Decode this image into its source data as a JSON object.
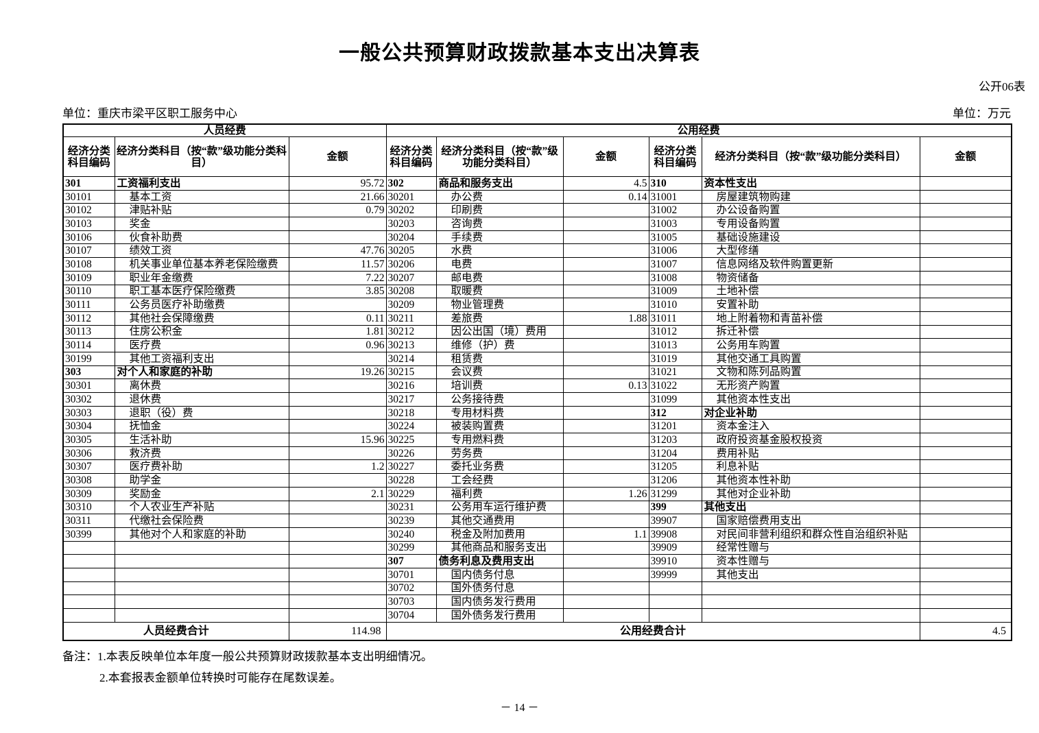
{
  "header": {
    "title": "一般公共预算财政拨款基本支出决算表",
    "table_no": "公开06表",
    "unit_org": "单位：重庆市梁平区职工服务中心",
    "unit_money": "单位：万元"
  },
  "table": {
    "group_left": "人员经费",
    "group_right": "公用经费",
    "headers": [
      "经济分类科目编码",
      "经济分类科目（按“款”级功能分类科目）",
      "金额",
      "经济分类科目编码",
      "经济分类科目（按“款”级功能分类科目）",
      "金额",
      "经济分类科目编码",
      "经济分类科目（按“款”级功能分类科目）",
      "金额"
    ],
    "sections": {
      "left": [
        [
          "301",
          "工资福利支出",
          "95.72",
          1
        ],
        [
          "30101",
          "基本工资",
          "21.66",
          0
        ],
        [
          "30102",
          "津贴补贴",
          "0.79",
          0
        ],
        [
          "30103",
          "奖金",
          "",
          0
        ],
        [
          "30106",
          "伙食补助费",
          "",
          0
        ],
        [
          "30107",
          "绩效工资",
          "47.76",
          0
        ],
        [
          "30108",
          "机关事业单位基本养老保险缴费",
          "11.57",
          0
        ],
        [
          "30109",
          "职业年金缴费",
          "7.22",
          0
        ],
        [
          "30110",
          "职工基本医疗保险缴费",
          "3.85",
          0
        ],
        [
          "30111",
          "公务员医疗补助缴费",
          "",
          0
        ],
        [
          "30112",
          "其他社会保障缴费",
          "0.11",
          0
        ],
        [
          "30113",
          "住房公积金",
          "1.81",
          0
        ],
        [
          "30114",
          "医疗费",
          "0.96",
          0
        ],
        [
          "30199",
          "其他工资福利支出",
          "",
          0
        ],
        [
          "303",
          "对个人和家庭的补助",
          "19.26",
          1
        ],
        [
          "30301",
          "离休费",
          "",
          0
        ],
        [
          "30302",
          "退休费",
          "",
          0
        ],
        [
          "30303",
          "退职（役）费",
          "",
          0
        ],
        [
          "30304",
          "抚恤金",
          "",
          0
        ],
        [
          "30305",
          "生活补助",
          "15.96",
          0
        ],
        [
          "30306",
          "救济费",
          "",
          0
        ],
        [
          "30307",
          "医疗费补助",
          "1.2",
          0
        ],
        [
          "30308",
          "助学金",
          "",
          0
        ],
        [
          "30309",
          "奖励金",
          "2.1",
          0
        ],
        [
          "30310",
          "个人农业生产补贴",
          "",
          0
        ],
        [
          "30311",
          "代缴社会保险费",
          "",
          0
        ],
        [
          "30399",
          "其他对个人和家庭的补助",
          "",
          0
        ]
      ],
      "middle": [
        [
          "302",
          "商品和服务支出",
          "4.5",
          1
        ],
        [
          "30201",
          "办公费",
          "0.14",
          0
        ],
        [
          "30202",
          "印刷费",
          "",
          0
        ],
        [
          "30203",
          "咨询费",
          "",
          0
        ],
        [
          "30204",
          "手续费",
          "",
          0
        ],
        [
          "30205",
          "水费",
          "",
          0
        ],
        [
          "30206",
          "电费",
          "",
          0
        ],
        [
          "30207",
          "邮电费",
          "",
          0
        ],
        [
          "30208",
          "取暖费",
          "",
          0
        ],
        [
          "30209",
          "物业管理费",
          "",
          0
        ],
        [
          "30211",
          "差旅费",
          "1.88",
          0
        ],
        [
          "30212",
          "因公出国（境）费用",
          "",
          0
        ],
        [
          "30213",
          "维修（护）费",
          "",
          0
        ],
        [
          "30214",
          "租赁费",
          "",
          0
        ],
        [
          "30215",
          "会议费",
          "",
          0
        ],
        [
          "30216",
          "培训费",
          "0.13",
          0
        ],
        [
          "30217",
          "公务接待费",
          "",
          0
        ],
        [
          "30218",
          "专用材料费",
          "",
          0
        ],
        [
          "30224",
          "被装购置费",
          "",
          0
        ],
        [
          "30225",
          "专用燃料费",
          "",
          0
        ],
        [
          "30226",
          "劳务费",
          "",
          0
        ],
        [
          "30227",
          "委托业务费",
          "",
          0
        ],
        [
          "30228",
          "工会经费",
          "",
          0
        ],
        [
          "30229",
          "福利费",
          "1.26",
          0
        ],
        [
          "30231",
          "公务用车运行维护费",
          "",
          0
        ],
        [
          "30239",
          "其他交通费用",
          "",
          0
        ],
        [
          "30240",
          "税金及附加费用",
          "1.1",
          0
        ],
        [
          "30299",
          "其他商品和服务支出",
          "",
          0
        ],
        [
          "307",
          "债务利息及费用支出",
          "",
          1
        ],
        [
          "30701",
          "国内债务付息",
          "",
          0
        ],
        [
          "30702",
          "国外债务付息",
          "",
          0
        ],
        [
          "30703",
          "国内债务发行费用",
          "",
          0
        ],
        [
          "30704",
          "国外债务发行费用",
          "",
          0
        ]
      ],
      "right": [
        [
          "310",
          "资本性支出",
          "",
          1
        ],
        [
          "31001",
          "房屋建筑物购建",
          "",
          0
        ],
        [
          "31002",
          "办公设备购置",
          "",
          0
        ],
        [
          "31003",
          "专用设备购置",
          "",
          0
        ],
        [
          "31005",
          "基础设施建设",
          "",
          0
        ],
        [
          "31006",
          "大型修缮",
          "",
          0
        ],
        [
          "31007",
          "信息网络及软件购置更新",
          "",
          0
        ],
        [
          "31008",
          "物资储备",
          "",
          0
        ],
        [
          "31009",
          "土地补偿",
          "",
          0
        ],
        [
          "31010",
          "安置补助",
          "",
          0
        ],
        [
          "31011",
          "地上附着物和青苗补偿",
          "",
          0
        ],
        [
          "31012",
          "拆迁补偿",
          "",
          0
        ],
        [
          "31013",
          "公务用车购置",
          "",
          0
        ],
        [
          "31019",
          "其他交通工具购置",
          "",
          0
        ],
        [
          "31021",
          "文物和陈列品购置",
          "",
          0
        ],
        [
          "31022",
          "无形资产购置",
          "",
          0
        ],
        [
          "31099",
          "其他资本性支出",
          "",
          0
        ],
        [
          "312",
          "对企业补助",
          "",
          1
        ],
        [
          "31201",
          "资本金注入",
          "",
          0
        ],
        [
          "31203",
          "政府投资基金股权投资",
          "",
          0
        ],
        [
          "31204",
          "费用补贴",
          "",
          0
        ],
        [
          "31205",
          "利息补贴",
          "",
          0
        ],
        [
          "31206",
          "其他资本性补助",
          "",
          0
        ],
        [
          "31299",
          "其他对企业补助",
          "",
          0
        ],
        [
          "399",
          "其他支出",
          "",
          1
        ],
        [
          "39907",
          "国家赔偿费用支出",
          "",
          0
        ],
        [
          "39908",
          "对民间非营利组织和群众性自治组织补贴",
          "",
          0
        ],
        [
          "39909",
          "经常性赠与",
          "",
          0
        ],
        [
          "39910",
          "资本性赠与",
          "",
          0
        ],
        [
          "39999",
          "其他支出",
          "",
          0
        ]
      ]
    },
    "row_count": 33,
    "totals": {
      "left_label": "人员经费合计",
      "left_amount": "114.98",
      "right_label": "公用经费合计",
      "right_amount": "4.5"
    }
  },
  "notes": {
    "note_1": "备注：1.本表反映单位本年度一般公共预算财政拨款基本支出明细情况。",
    "note_2": "2.本套报表金额单位转换时可能存在尾数误差。"
  },
  "footer": {
    "page_number": "－ 14 －"
  }
}
